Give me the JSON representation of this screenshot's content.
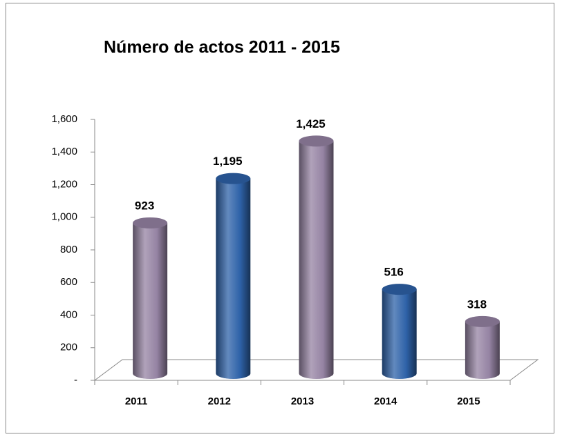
{
  "chart_data": {
    "type": "cylinder-bar",
    "title": "Número de actos 2011 - 2015",
    "categories": [
      "2011",
      "2012",
      "2013",
      "2014",
      "2015"
    ],
    "values": [
      923,
      1195,
      1425,
      516,
      318
    ],
    "value_labels": [
      "923",
      "1,195",
      "1,425",
      "516",
      "318"
    ],
    "colors": [
      "#9583a3",
      "#2e62a8",
      "#9583a3",
      "#2e62a8",
      "#9583a3"
    ],
    "ylim": [
      0,
      1600
    ],
    "yticks": [
      {
        "value": 0,
        "label": "-"
      },
      200,
      400,
      600,
      800,
      {
        "value": 1000,
        "label": "1,000"
      },
      {
        "value": 1200,
        "label": "1,200"
      },
      {
        "value": 1400,
        "label": "1,400"
      },
      {
        "value": 1600,
        "label": "1,600"
      }
    ]
  }
}
